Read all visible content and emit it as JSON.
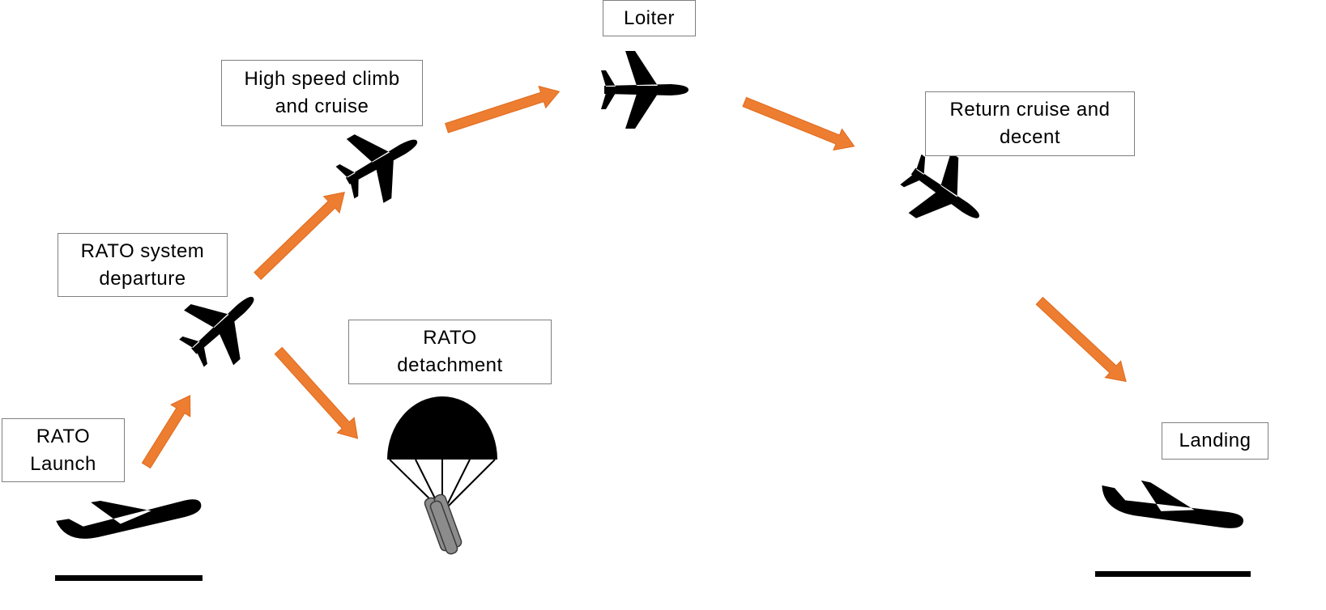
{
  "diagram": {
    "stages": [
      {
        "id": "rato-launch",
        "label": "RATO\nLaunch"
      },
      {
        "id": "rato-system-departure",
        "label": "RATO system\ndeparture"
      },
      {
        "id": "high-speed-climb",
        "label": "High speed climb\nand cruise"
      },
      {
        "id": "loiter",
        "label": "Loiter"
      },
      {
        "id": "return-cruise",
        "label": "Return cruise and\ndecent"
      },
      {
        "id": "landing",
        "label": "Landing"
      },
      {
        "id": "rato-detachment",
        "label": "RATO\ndetachment"
      }
    ],
    "colors": {
      "arrow": "#ed7d31",
      "aircraft": "#000000",
      "ground": "#000000",
      "rato_booster": "#8c8c8c",
      "label_border": "#7f7f7f"
    },
    "icons": [
      "airplane-icon",
      "parachute-icon",
      "rato-booster-icon",
      "ground-line"
    ]
  }
}
